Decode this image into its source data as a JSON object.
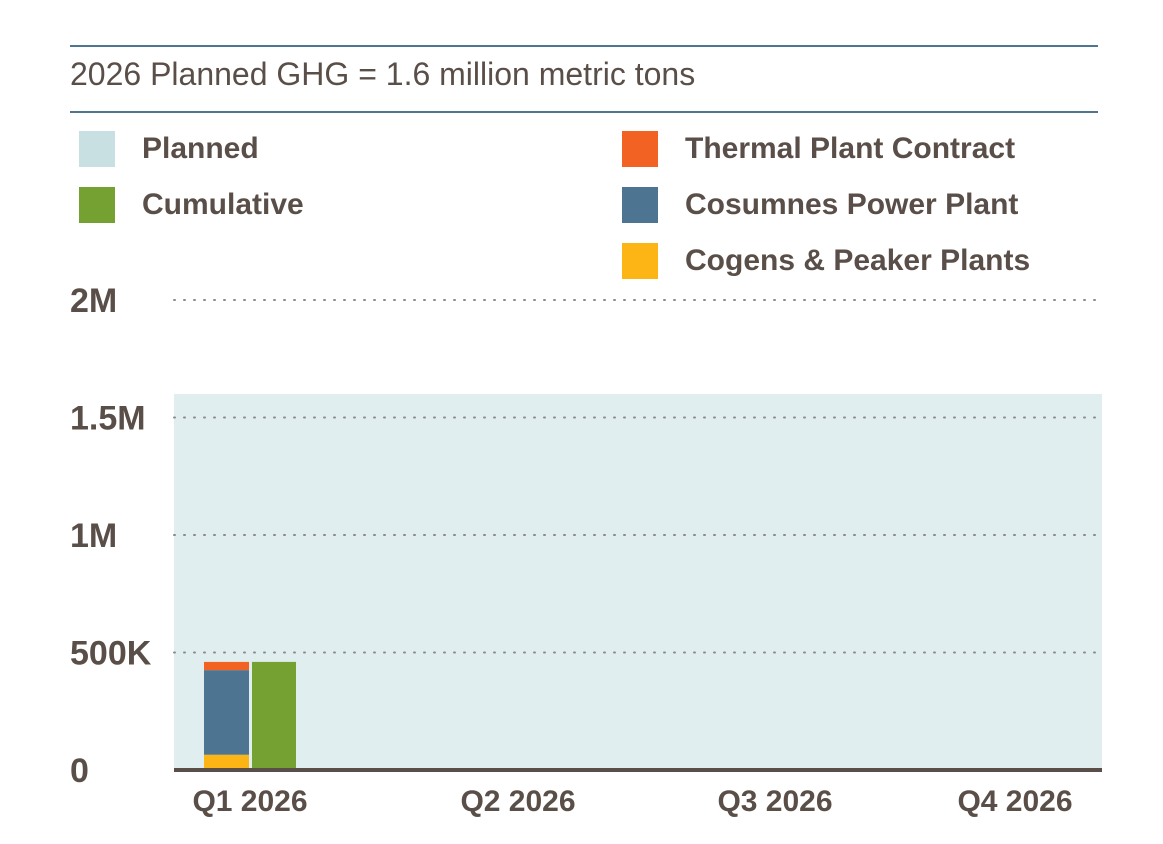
{
  "title": "2026 Planned GHG = 1.6 million metric tons",
  "legend": [
    {
      "label": "Planned",
      "color": "#c9e0e3"
    },
    {
      "label": "Cumulative",
      "color": "#74a132"
    },
    {
      "label": "Thermal Plant Contract",
      "color": "#f26222"
    },
    {
      "label": "Cosumnes Power Plant",
      "color": "#4d7591"
    },
    {
      "label": "Cogens & Peaker Plants",
      "color": "#fdb515"
    }
  ],
  "chart_data": {
    "type": "bar",
    "title": "2026 Planned GHG = 1.6 million metric tons",
    "xlabel": "",
    "ylabel": "",
    "categories": [
      "Q1 2026",
      "Q2 2026",
      "Q3 2026",
      "Q4 2026"
    ],
    "ylim": [
      0,
      2000000
    ],
    "yticks": [
      {
        "value": 0,
        "label": "0"
      },
      {
        "value": 500000,
        "label": "500K"
      },
      {
        "value": 1000000,
        "label": "1M"
      },
      {
        "value": 1500000,
        "label": "1.5M"
      },
      {
        "value": 2000000,
        "label": "2M"
      }
    ],
    "planned": 1600000,
    "stacked_series": [
      {
        "name": "Cogens & Peaker Plants",
        "color": "#fdb515",
        "values": [
          65000,
          null,
          null,
          null
        ]
      },
      {
        "name": "Cosumnes Power Plant",
        "color": "#4d7591",
        "values": [
          360000,
          null,
          null,
          null
        ]
      },
      {
        "name": "Thermal Plant Contract",
        "color": "#f26222",
        "values": [
          35000,
          null,
          null,
          null
        ]
      }
    ],
    "cumulative": {
      "name": "Cumulative",
      "color": "#74a132",
      "values": [
        460000,
        null,
        null,
        null
      ]
    },
    "grid": true,
    "legend_position": "top"
  }
}
